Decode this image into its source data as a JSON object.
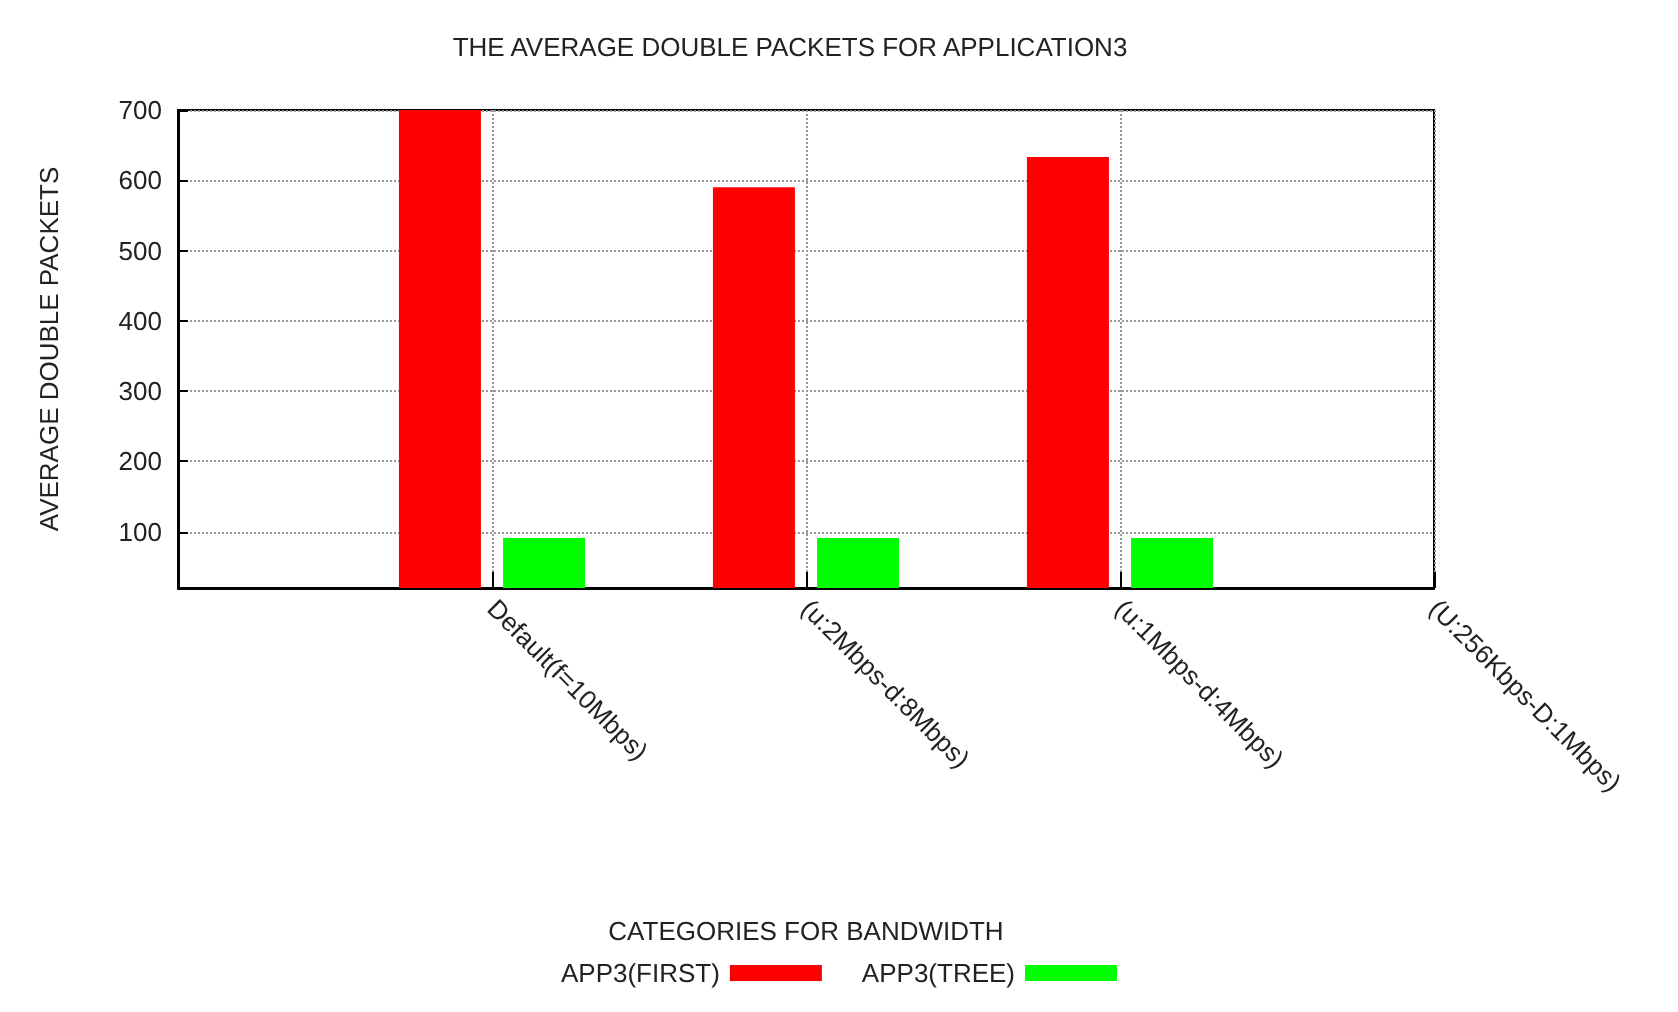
{
  "chart_data": {
    "type": "bar",
    "title": "THE AVERAGE DOUBLE PACKETS FOR APPLICATION3",
    "xlabel": "CATEGORIES FOR BANDWIDTH",
    "ylabel": "AVERAGE DOUBLE PACKETS",
    "categories": [
      null,
      "Default(f=10Mbps)",
      "(u:2Mbps-d:8Mbps)",
      "(u:1Mbps-d:4Mbps)",
      "(U:256Kbps-D:1Mbps)"
    ],
    "series": [
      {
        "name": "APP3(FIRST)",
        "color": "#ff0000",
        "values": [
          null,
          700,
          590,
          633,
          null
        ]
      },
      {
        "name": "APP3(TREE)",
        "color": "#00ff00",
        "values": [
          null,
          91,
          91,
          91,
          null
        ]
      }
    ],
    "ylim": [
      20,
      700
    ],
    "yticks": [
      100,
      200,
      300,
      400,
      500,
      600,
      700
    ],
    "grid": true,
    "legend": "bottom"
  }
}
